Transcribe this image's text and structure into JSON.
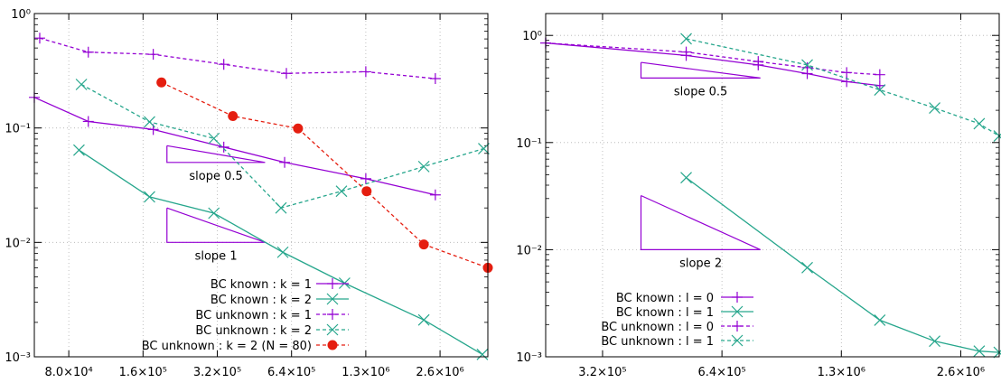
{
  "chart_data": [
    {
      "type": "line",
      "xscale": "log",
      "yscale": "log",
      "xlim": [
        58000,
        4000000
      ],
      "ylim": [
        0.001,
        1
      ],
      "x_ticks": [
        80000,
        160000,
        320000,
        640000,
        1280000,
        2560000
      ],
      "x_tick_labels": [
        "8.0×10⁴",
        "1.6×10⁵",
        "3.2×10⁵",
        "6.4×10⁵",
        "1.3×10⁶",
        "2.6×10⁶"
      ],
      "y_ticks": [
        0.001,
        0.01,
        0.1,
        1
      ],
      "y_tick_labels": [
        "10⁻³",
        "10⁻²",
        "10⁻¹",
        "10⁰"
      ],
      "grid": true,
      "legend_position": "bottom-right",
      "series": [
        {
          "name": "BC known : k = 1",
          "color": "#9400d3",
          "dash": "solid",
          "marker": "plus",
          "x": [
            58000,
            96000,
            176000,
            340000,
            600000,
            1280000,
            2450000
          ],
          "y": [
            0.185,
            0.114,
            0.097,
            0.068,
            0.05,
            0.036,
            0.026
          ]
        },
        {
          "name": "BC known : k = 2",
          "color": "#26a68c",
          "dash": "solid",
          "marker": "cross",
          "x": [
            88000,
            170000,
            310000,
            590000,
            1050000,
            2200000,
            3800000
          ],
          "y": [
            0.064,
            0.025,
            0.018,
            0.0082,
            0.0044,
            0.0021,
            0.00105
          ]
        },
        {
          "name": "BC unknown : k = 1",
          "color": "#9400d3",
          "dash": "dashed",
          "marker": "plus",
          "x": [
            61000,
            96000,
            176000,
            340000,
            610000,
            1280000,
            2450000
          ],
          "y": [
            0.61,
            0.46,
            0.44,
            0.36,
            0.3,
            0.31,
            0.27
          ]
        },
        {
          "name": "BC unknown : k = 2",
          "color": "#26a68c",
          "dash": "dashed",
          "marker": "cross",
          "x": [
            90000,
            170000,
            310000,
            580000,
            1020000,
            2200000,
            3850000
          ],
          "y": [
            0.24,
            0.113,
            0.081,
            0.02,
            0.028,
            0.046,
            0.066
          ]
        },
        {
          "name": "BC unknown : k = 2 (N = 80)",
          "color": "#e51e10",
          "dash": "dashed",
          "marker": "dot",
          "x": [
            190000,
            370000,
            680000,
            1290000,
            2200000,
            4000000
          ],
          "y": [
            0.25,
            0.127,
            0.099,
            0.028,
            0.0096,
            0.006
          ]
        }
      ],
      "annotations": [
        {
          "text": "slope 0.5",
          "x0": 200000,
          "y0": 0.07,
          "x1": 500000,
          "y1": 0.05
        },
        {
          "text": "slope 1",
          "x0": 200000,
          "y0": 0.02,
          "x1": 500000,
          "y1": 0.01
        }
      ]
    },
    {
      "type": "line",
      "xscale": "log",
      "yscale": "log",
      "xlim": [
        230000,
        3200000
      ],
      "ylim": [
        0.001,
        1.6
      ],
      "x_ticks": [
        320000,
        640000,
        1280000,
        2560000
      ],
      "x_tick_labels": [
        "3.2×10⁵",
        "6.4×10⁵",
        "1.3×10⁶",
        "2.6×10⁶"
      ],
      "y_ticks": [
        0.001,
        0.01,
        0.1,
        1
      ],
      "y_tick_labels": [
        "10⁻³",
        "10⁻²",
        "10⁻¹",
        "10⁰"
      ],
      "grid": true,
      "legend_position": "bottom-left",
      "series": [
        {
          "name": "BC known : l = 0",
          "color": "#9400d3",
          "dash": "solid",
          "marker": "plus",
          "x": [
            230000,
            520000,
            790000,
            1050000,
            1320000,
            1600000
          ],
          "y": [
            0.85,
            0.65,
            0.53,
            0.44,
            0.37,
            0.34
          ]
        },
        {
          "name": "BC known : l = 1",
          "color": "#26a68c",
          "dash": "solid",
          "marker": "cross",
          "x": [
            520000,
            1050000,
            1600000,
            2200000,
            2850000,
            3200000
          ],
          "y": [
            0.047,
            0.0068,
            0.0022,
            0.0014,
            0.00113,
            0.0011
          ]
        },
        {
          "name": "BC unknown : l = 0",
          "color": "#9400d3",
          "dash": "dashed",
          "marker": "plus",
          "x": [
            230000,
            520000,
            790000,
            1050000,
            1320000,
            1600000
          ],
          "y": [
            0.85,
            0.7,
            0.57,
            0.5,
            0.45,
            0.43
          ]
        },
        {
          "name": "BC unknown : l = 1",
          "color": "#26a68c",
          "dash": "dashed",
          "marker": "cross",
          "x": [
            520000,
            1050000,
            1600000,
            2200000,
            2850000,
            3200000
          ],
          "y": [
            0.93,
            0.53,
            0.31,
            0.21,
            0.15,
            0.115
          ]
        }
      ],
      "annotations": [
        {
          "text": "slope 0.5",
          "x0": 400000,
          "y0": 0.56,
          "x1": 800000,
          "y1": 0.4
        },
        {
          "text": "slope 2",
          "x0": 400000,
          "y0": 0.032,
          "x1": 800000,
          "y1": 0.01
        }
      ]
    }
  ]
}
